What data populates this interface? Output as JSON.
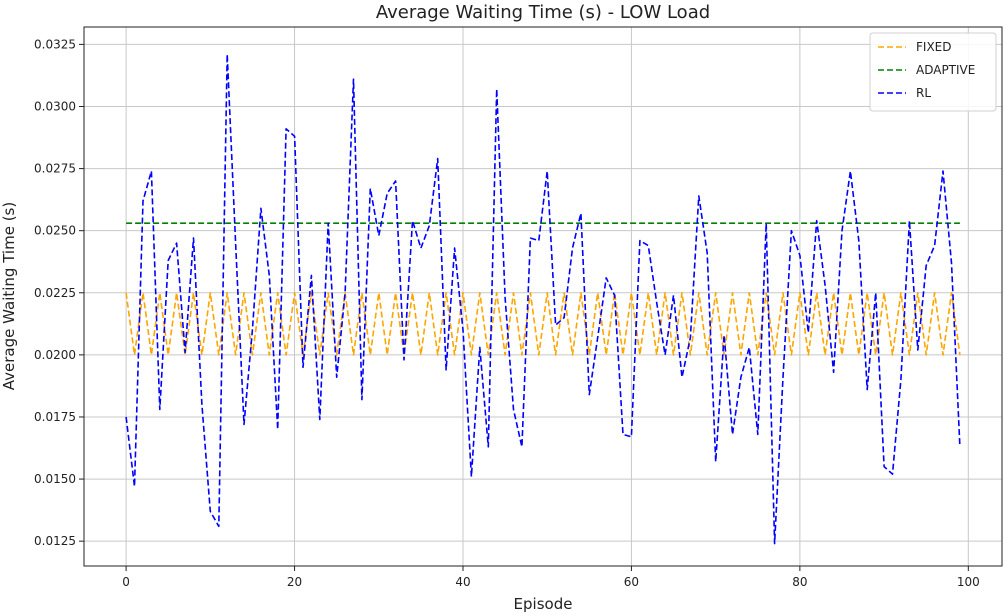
{
  "chart_data": {
    "type": "line",
    "title": "Average Waiting Time (s) - LOW Load",
    "xlabel": "Episode",
    "ylabel": "Average Waiting Time (s)",
    "xlim": [
      -5,
      104
    ],
    "ylim": [
      0.0115,
      0.0332
    ],
    "xticks": [
      0,
      20,
      40,
      60,
      80,
      100
    ],
    "yticks": [
      0.0125,
      0.015,
      0.0175,
      0.02,
      0.0225,
      0.025,
      0.0275,
      0.03,
      0.0325
    ],
    "grid": true,
    "legend_position": "top-right",
    "series": [
      {
        "name": "FIXED",
        "color": "#FFA500",
        "dash": "dashed",
        "x": [
          0,
          1,
          2,
          3,
          4,
          5,
          6,
          7,
          8,
          9,
          10,
          11,
          12,
          13,
          14,
          15,
          16,
          17,
          18,
          19,
          20,
          21,
          22,
          23,
          24,
          25,
          26,
          27,
          28,
          29,
          30,
          31,
          32,
          33,
          34,
          35,
          36,
          37,
          38,
          39,
          40,
          41,
          42,
          43,
          44,
          45,
          46,
          47,
          48,
          49,
          50,
          51,
          52,
          53,
          54,
          55,
          56,
          57,
          58,
          59,
          60,
          61,
          62,
          63,
          64,
          65,
          66,
          67,
          68,
          69,
          70,
          71,
          72,
          73,
          74,
          75,
          76,
          77,
          78,
          79,
          80,
          81,
          82,
          83,
          84,
          85,
          86,
          87,
          88,
          89,
          90,
          91,
          92,
          93,
          94,
          95,
          96,
          97,
          98,
          99
        ],
        "y": [
          0.0225,
          0.02,
          0.0225,
          0.02,
          0.0225,
          0.02,
          0.0225,
          0.02,
          0.0225,
          0.02,
          0.0225,
          0.02,
          0.0225,
          0.02,
          0.0225,
          0.02,
          0.0225,
          0.02,
          0.0225,
          0.02,
          0.0225,
          0.02,
          0.0225,
          0.02,
          0.0225,
          0.02,
          0.0225,
          0.02,
          0.0225,
          0.02,
          0.0225,
          0.02,
          0.0225,
          0.02,
          0.0225,
          0.02,
          0.0225,
          0.02,
          0.0225,
          0.02,
          0.0225,
          0.02,
          0.0225,
          0.02,
          0.0225,
          0.02,
          0.0225,
          0.02,
          0.0225,
          0.02,
          0.0225,
          0.02,
          0.0225,
          0.02,
          0.0225,
          0.02,
          0.0225,
          0.02,
          0.0225,
          0.02,
          0.0225,
          0.02,
          0.0225,
          0.02,
          0.0225,
          0.02,
          0.0225,
          0.02,
          0.0225,
          0.02,
          0.0225,
          0.02,
          0.0225,
          0.02,
          0.0225,
          0.02,
          0.0225,
          0.02,
          0.0225,
          0.02,
          0.0225,
          0.02,
          0.0225,
          0.02,
          0.0225,
          0.02,
          0.0225,
          0.02,
          0.0225,
          0.02,
          0.0225,
          0.02,
          0.0225,
          0.02,
          0.0225,
          0.02,
          0.0225,
          0.02,
          0.0225,
          0.02
        ]
      },
      {
        "name": "ADAPTIVE",
        "color": "#008000",
        "dash": "dashed",
        "x": [
          0,
          99
        ],
        "y": [
          0.0253,
          0.0253
        ]
      },
      {
        "name": "RL",
        "color": "#0000FF",
        "dash": "dashed",
        "x": [
          0,
          1,
          2,
          3,
          4,
          5,
          6,
          7,
          8,
          9,
          10,
          11,
          12,
          13,
          14,
          15,
          16,
          17,
          18,
          19,
          20,
          21,
          22,
          23,
          24,
          25,
          26,
          27,
          28,
          29,
          30,
          31,
          32,
          33,
          34,
          35,
          36,
          37,
          38,
          39,
          40,
          41,
          42,
          43,
          44,
          45,
          46,
          47,
          48,
          49,
          50,
          51,
          52,
          53,
          54,
          55,
          56,
          57,
          58,
          59,
          60,
          61,
          62,
          63,
          64,
          65,
          66,
          67,
          68,
          69,
          70,
          71,
          72,
          73,
          74,
          75,
          76,
          77,
          78,
          79,
          80,
          81,
          82,
          83,
          84,
          85,
          86,
          87,
          88,
          89,
          90,
          91,
          92,
          93,
          94,
          95,
          96,
          97,
          98,
          99
        ],
        "y": [
          0.0175,
          0.0147,
          0.0262,
          0.0274,
          0.0178,
          0.0238,
          0.0245,
          0.0201,
          0.0247,
          0.018,
          0.0137,
          0.0131,
          0.0321,
          0.0245,
          0.0172,
          0.021,
          0.0259,
          0.0232,
          0.017,
          0.0291,
          0.0288,
          0.0195,
          0.0232,
          0.0174,
          0.0253,
          0.0191,
          0.0225,
          0.0311,
          0.0182,
          0.0267,
          0.0248,
          0.0265,
          0.027,
          0.0198,
          0.0254,
          0.0243,
          0.0252,
          0.0279,
          0.0194,
          0.0243,
          0.021,
          0.0151,
          0.0203,
          0.0163,
          0.0307,
          0.0223,
          0.0178,
          0.0163,
          0.0247,
          0.0246,
          0.0274,
          0.0212,
          0.0215,
          0.0243,
          0.0257,
          0.0184,
          0.0207,
          0.0231,
          0.0224,
          0.0168,
          0.0167,
          0.0246,
          0.0244,
          0.0221,
          0.02,
          0.0224,
          0.0191,
          0.0207,
          0.0264,
          0.0241,
          0.0157,
          0.0208,
          0.0168,
          0.0191,
          0.0203,
          0.0168,
          0.0253,
          0.0124,
          0.0191,
          0.025,
          0.024,
          0.0209,
          0.0254,
          0.0228,
          0.0193,
          0.025,
          0.0274,
          0.0246,
          0.0186,
          0.0225,
          0.0155,
          0.0152,
          0.019,
          0.0254,
          0.0202,
          0.0236,
          0.0244,
          0.0274,
          0.0237,
          0.0163
        ]
      }
    ]
  }
}
